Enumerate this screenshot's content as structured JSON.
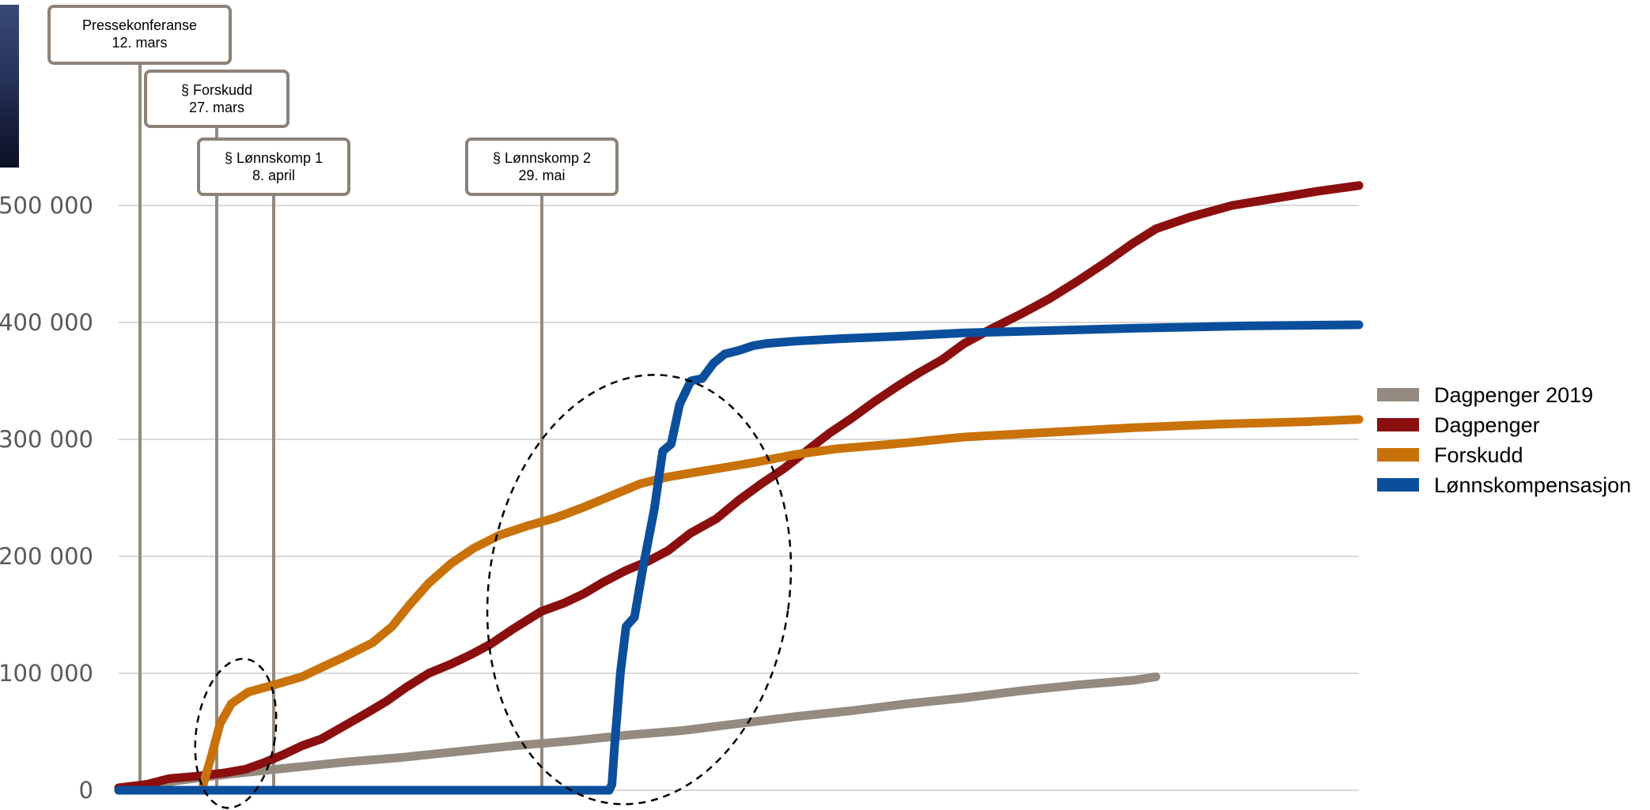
{
  "chart_data": {
    "type": "line",
    "y_ticks": [
      "0",
      "100 000",
      "200 000",
      "300 000",
      "400 000",
      "500 000"
    ],
    "ylim": [
      0,
      500000
    ],
    "grid": true,
    "legend_position": "right",
    "x_days": 160,
    "series": [
      {
        "name": "Dagpenger 2019",
        "color": "#948a80",
        "points": [
          [
            0,
            0
          ],
          [
            10,
            3000
          ],
          [
            20,
            8000
          ],
          [
            40,
            14000
          ],
          [
            60,
            19000
          ],
          [
            80,
            24000
          ],
          [
            100,
            28000
          ],
          [
            120,
            33000
          ],
          [
            140,
            38000
          ],
          [
            160,
            42000
          ],
          [
            180,
            47000
          ],
          [
            200,
            51000
          ],
          [
            220,
            57000
          ],
          [
            240,
            63000
          ],
          [
            260,
            68000
          ],
          [
            280,
            74000
          ],
          [
            300,
            79000
          ],
          [
            320,
            85000
          ],
          [
            340,
            90000
          ],
          [
            360,
            94000
          ],
          [
            368,
            97000
          ]
        ]
      },
      {
        "name": "Dagpenger",
        "color": "#8b0f0f",
        "points": [
          [
            0,
            2000
          ],
          [
            10,
            5000
          ],
          [
            18,
            10000
          ],
          [
            28,
            12000
          ],
          [
            38,
            15000
          ],
          [
            45,
            18000
          ],
          [
            52,
            24000
          ],
          [
            58,
            30000
          ],
          [
            65,
            38000
          ],
          [
            72,
            44000
          ],
          [
            80,
            55000
          ],
          [
            88,
            66000
          ],
          [
            95,
            76000
          ],
          [
            102,
            88000
          ],
          [
            110,
            100000
          ],
          [
            118,
            108000
          ],
          [
            125,
            116000
          ],
          [
            132,
            125000
          ],
          [
            140,
            138000
          ],
          [
            150,
            153000
          ],
          [
            158,
            160000
          ],
          [
            165,
            168000
          ],
          [
            172,
            178000
          ],
          [
            180,
            188000
          ],
          [
            188,
            196000
          ],
          [
            195,
            205000
          ],
          [
            203,
            220000
          ],
          [
            212,
            232000
          ],
          [
            220,
            248000
          ],
          [
            228,
            262000
          ],
          [
            236,
            275000
          ],
          [
            244,
            290000
          ],
          [
            252,
            305000
          ],
          [
            260,
            318000
          ],
          [
            268,
            332000
          ],
          [
            276,
            345000
          ],
          [
            284,
            357000
          ],
          [
            292,
            368000
          ],
          [
            300,
            382000
          ],
          [
            310,
            395000
          ],
          [
            320,
            407000
          ],
          [
            330,
            420000
          ],
          [
            340,
            435000
          ],
          [
            350,
            451000
          ],
          [
            360,
            468000
          ],
          [
            368,
            480000
          ],
          [
            380,
            490000
          ],
          [
            395,
            500000
          ],
          [
            410,
            506000
          ],
          [
            425,
            512000
          ],
          [
            440,
            517000
          ]
        ]
      },
      {
        "name": "Forskudd",
        "color": "#c9720a",
        "points": [
          [
            30,
            5000
          ],
          [
            33,
            30000
          ],
          [
            36,
            57000
          ],
          [
            40,
            74000
          ],
          [
            46,
            84000
          ],
          [
            55,
            90000
          ],
          [
            65,
            97000
          ],
          [
            72,
            105000
          ],
          [
            80,
            114000
          ],
          [
            90,
            126000
          ],
          [
            97,
            140000
          ],
          [
            103,
            158000
          ],
          [
            110,
            177000
          ],
          [
            118,
            194000
          ],
          [
            126,
            207000
          ],
          [
            135,
            218000
          ],
          [
            145,
            226000
          ],
          [
            155,
            233000
          ],
          [
            165,
            242000
          ],
          [
            175,
            252000
          ],
          [
            185,
            262000
          ],
          [
            195,
            268000
          ],
          [
            205,
            272000
          ],
          [
            215,
            276000
          ],
          [
            225,
            280000
          ],
          [
            240,
            287000
          ],
          [
            255,
            292000
          ],
          [
            275,
            296000
          ],
          [
            300,
            302000
          ],
          [
            330,
            306000
          ],
          [
            360,
            310000
          ],
          [
            390,
            313000
          ],
          [
            420,
            315000
          ],
          [
            440,
            317000
          ]
        ]
      },
      {
        "name": "Lønnskompensasjon",
        "color": "#0b4f9c",
        "points": [
          [
            0,
            0
          ],
          [
            174,
            0
          ],
          [
            175,
            5000
          ],
          [
            176,
            40000
          ],
          [
            178,
            100000
          ],
          [
            180,
            140000
          ],
          [
            183,
            148000
          ],
          [
            186,
            190000
          ],
          [
            190,
            240000
          ],
          [
            193,
            290000
          ],
          [
            196,
            296000
          ],
          [
            199,
            330000
          ],
          [
            203,
            350000
          ],
          [
            207,
            352000
          ],
          [
            211,
            365000
          ],
          [
            215,
            373000
          ],
          [
            220,
            376000
          ],
          [
            225,
            380000
          ],
          [
            230,
            382000
          ],
          [
            240,
            384000
          ],
          [
            255,
            386000
          ],
          [
            275,
            388000
          ],
          [
            300,
            391000
          ],
          [
            330,
            393000
          ],
          [
            360,
            395000
          ],
          [
            400,
            397000
          ],
          [
            440,
            398000
          ]
        ]
      }
    ],
    "events": [
      {
        "label": "Pressekonferanse",
        "date": "12. mars",
        "day": 8
      },
      {
        "label": "§ Forskudd",
        "date": "27. mars",
        "day": 35
      },
      {
        "label": "§ Lønnskomp 1",
        "date": "8. april",
        "day": 55
      },
      {
        "label": "§ Lønnskomp 2",
        "date": "29. mai",
        "day": 150
      }
    ],
    "highlights": [
      {
        "cx_day": 38,
        "cy": 0,
        "rx_days": 14,
        "ry": 122000
      },
      {
        "cx_day": 195,
        "cy": 250000,
        "rx_days": 53,
        "ry": 250000
      }
    ]
  },
  "legend": [
    {
      "label": "Dagpenger 2019",
      "color": "#948a80"
    },
    {
      "label": "Dagpenger",
      "color": "#8b0f0f"
    },
    {
      "label": "Forskudd",
      "color": "#c9720a"
    },
    {
      "label": "Lønnskompensasjon",
      "color": "#0b4f9c"
    }
  ]
}
